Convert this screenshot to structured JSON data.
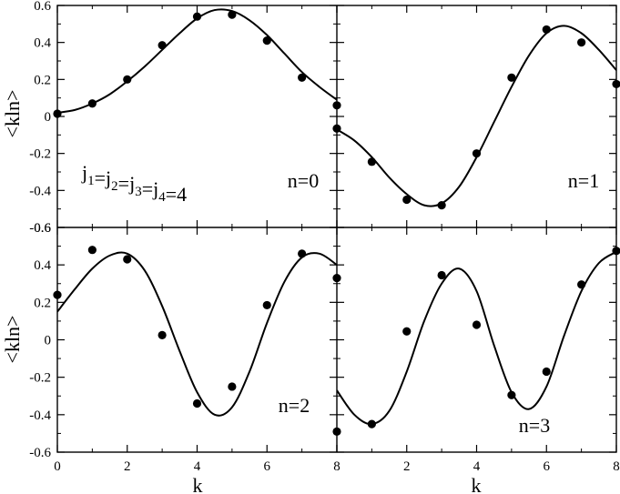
{
  "chart_data": {
    "type": "scatter",
    "ylabel": "<kln>",
    "xlabel": "k",
    "xlim": [
      0,
      8
    ],
    "ylim": [
      -0.6,
      0.6
    ],
    "xticks": [
      "0",
      "2",
      "4",
      "6",
      "8"
    ],
    "yticks": [
      "-0.6",
      "-0.4",
      "-0.2",
      "0",
      "0.2",
      "0.4",
      "0.6"
    ],
    "annotation": {
      "parts": [
        {
          "t": "j",
          "sub": "1"
        },
        {
          "t": "=j",
          "sub": "2"
        },
        {
          "t": "=j",
          "sub": "3"
        },
        {
          "t": "=j",
          "sub": "4"
        },
        {
          "t": "=4",
          "sub": ""
        }
      ]
    },
    "panels": [
      {
        "label": "n=0",
        "points": {
          "x": [
            0,
            1,
            2,
            3,
            4,
            5,
            6,
            7,
            8
          ],
          "y": [
            0.015,
            0.07,
            0.2,
            0.385,
            0.54,
            0.55,
            0.41,
            0.21,
            0.06
          ]
        },
        "curve": {
          "x": [
            0,
            0.5,
            1,
            1.5,
            2,
            2.5,
            3,
            3.5,
            4,
            4.5,
            5,
            5.5,
            6,
            6.5,
            7,
            7.5,
            8
          ],
          "y": [
            0.02,
            0.035,
            0.07,
            0.12,
            0.19,
            0.27,
            0.36,
            0.45,
            0.53,
            0.575,
            0.57,
            0.52,
            0.44,
            0.34,
            0.24,
            0.16,
            0.09
          ]
        }
      },
      {
        "label": "n=1",
        "points": {
          "x": [
            0,
            1,
            2,
            3,
            4,
            5,
            6,
            7,
            8
          ],
          "y": [
            -0.065,
            -0.245,
            -0.45,
            -0.48,
            -0.2,
            0.21,
            0.47,
            0.4,
            0.175
          ]
        },
        "curve": {
          "x": [
            0,
            0.5,
            1,
            1.5,
            2,
            2.5,
            3,
            3.5,
            4,
            4.5,
            5,
            5.5,
            6,
            6.5,
            7,
            7.5,
            8
          ],
          "y": [
            -0.07,
            -0.13,
            -0.22,
            -0.33,
            -0.42,
            -0.48,
            -0.47,
            -0.38,
            -0.22,
            -0.03,
            0.16,
            0.33,
            0.45,
            0.49,
            0.45,
            0.36,
            0.25
          ]
        }
      },
      {
        "label": "n=2",
        "points": {
          "x": [
            0,
            1,
            2,
            3,
            4,
            5,
            6,
            7,
            8
          ],
          "y": [
            0.24,
            0.48,
            0.43,
            0.025,
            -0.34,
            -0.25,
            0.185,
            0.46,
            0.33
          ]
        },
        "curve": {
          "x": [
            0,
            0.5,
            1,
            1.5,
            2,
            2.5,
            3,
            3.5,
            4,
            4.5,
            5,
            5.5,
            6,
            6.5,
            7,
            7.5,
            8
          ],
          "y": [
            0.15,
            0.27,
            0.38,
            0.45,
            0.46,
            0.37,
            0.18,
            -0.06,
            -0.28,
            -0.4,
            -0.36,
            -0.17,
            0.09,
            0.31,
            0.44,
            0.46,
            0.4
          ]
        }
      },
      {
        "label": "n=3",
        "points": {
          "x": [
            0,
            1,
            2,
            3,
            4,
            5,
            6,
            7,
            8
          ],
          "y": [
            -0.49,
            -0.45,
            0.045,
            0.345,
            0.08,
            -0.295,
            -0.17,
            0.295,
            0.475
          ]
        },
        "curve": {
          "x": [
            0,
            0.5,
            1,
            1.5,
            2,
            2.5,
            3,
            3.5,
            4,
            4.5,
            5,
            5.5,
            6,
            6.5,
            7,
            7.5,
            8
          ],
          "y": [
            -0.27,
            -0.4,
            -0.45,
            -0.38,
            -0.17,
            0.1,
            0.3,
            0.38,
            0.26,
            -0.03,
            -0.28,
            -0.37,
            -0.25,
            0.02,
            0.26,
            0.41,
            0.47
          ]
        }
      }
    ]
  }
}
